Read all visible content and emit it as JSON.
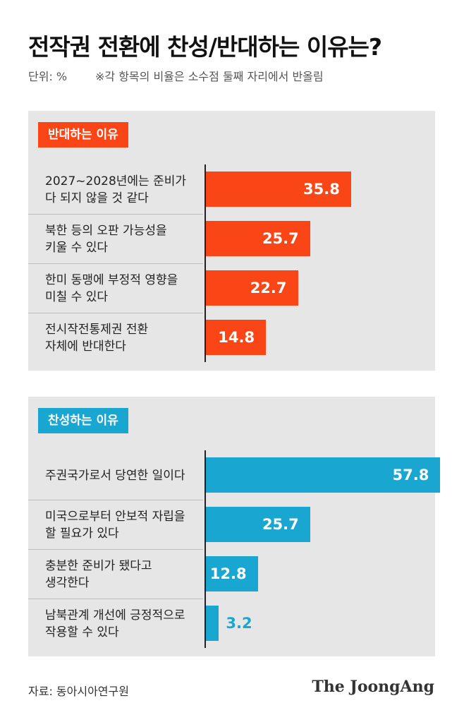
{
  "header": {
    "title": "전작권 전환에 찬성/반대하는 이유는?",
    "unit": "단위: %",
    "note": "※각 항목의 비율은 소수점 둘째 자리에서 반올림"
  },
  "footer": {
    "source": "자료: 동아시아연구원",
    "logo": "The JoongAng"
  },
  "colors": {
    "oppose": "#fa4616",
    "support": "#19a7d1"
  },
  "chart_data": [
    {
      "type": "bar",
      "title": "반대하는 이유",
      "categories": [
        [
          "2027~2028년에는 준비가",
          "다 되지 않을 것 같다"
        ],
        [
          "북한 등의 오판 가능성을",
          "키울 수 있다"
        ],
        [
          "한미 동맹에 부정적 영향을",
          "미칠 수 있다"
        ],
        [
          "전시작전통제권 전환",
          "자체에 반대한다"
        ]
      ],
      "values": [
        35.8,
        25.7,
        22.7,
        14.8
      ],
      "value_labels": [
        "35.8",
        "25.7",
        "22.7",
        "14.8"
      ]
    },
    {
      "type": "bar",
      "title": "찬성하는 이유",
      "categories": [
        [
          "주권국가로서 당연한 일이다"
        ],
        [
          "미국으로부터 안보적 자립을",
          "할 필요가 있다"
        ],
        [
          "충분한 준비가 됐다고",
          "생각한다"
        ],
        [
          "남북관계 개선에 긍정적으로",
          "작용할 수 있다"
        ]
      ],
      "values": [
        57.8,
        25.7,
        12.8,
        3.2
      ],
      "value_labels": [
        "57.8",
        "25.7",
        "12.8",
        "3.2"
      ]
    }
  ]
}
